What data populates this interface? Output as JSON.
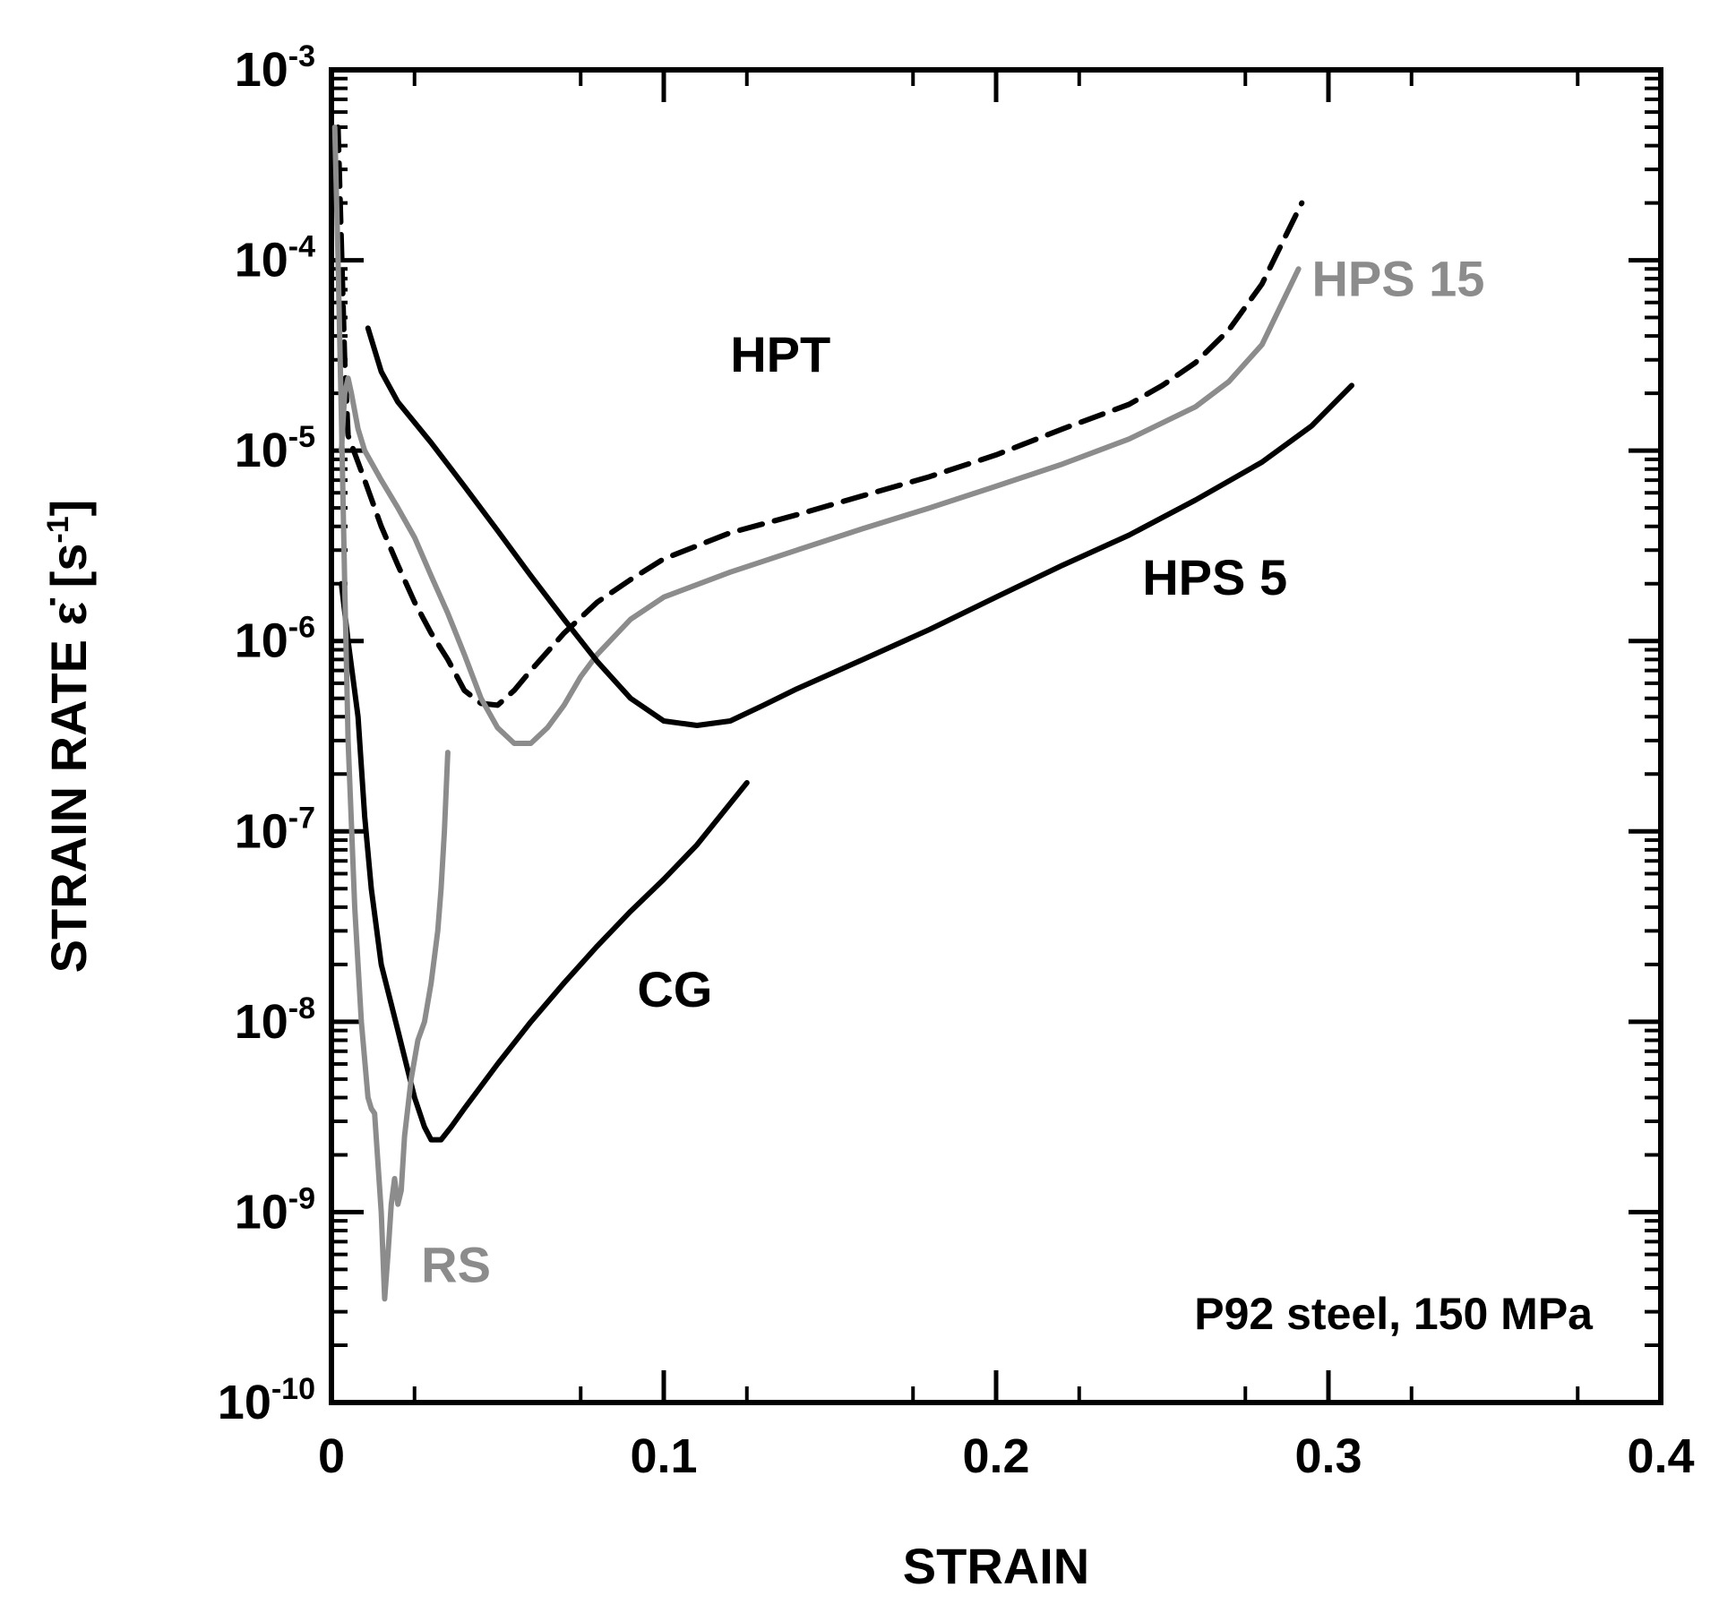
{
  "chart_data": {
    "type": "line",
    "title": "",
    "xlabel": "STRAIN",
    "ylabel": {
      "prefix": "STRAIN RATE ",
      "symbol": "ε̇",
      "unit_open": " [s",
      "unit_exp": "-1",
      "unit_close": "]"
    },
    "xlim": [
      0,
      0.4
    ],
    "ylim": [
      1e-10,
      0.001
    ],
    "yscale": "log",
    "grid": false,
    "x_ticks": [
      {
        "value": 0,
        "label": "0"
      },
      {
        "value": 0.1,
        "label": "0.1"
      },
      {
        "value": 0.2,
        "label": "0.2"
      },
      {
        "value": 0.3,
        "label": "0.3"
      },
      {
        "value": 0.4,
        "label": "0.4"
      }
    ],
    "y_ticks": [
      {
        "value": 1e-10,
        "base": "10",
        "exp": "-10"
      },
      {
        "value": 1e-09,
        "base": "10",
        "exp": "-9"
      },
      {
        "value": 1e-08,
        "base": "10",
        "exp": "-8"
      },
      {
        "value": 1e-07,
        "base": "10",
        "exp": "-7"
      },
      {
        "value": 1e-06,
        "base": "10",
        "exp": "-6"
      },
      {
        "value": 1e-05,
        "base": "10",
        "exp": "-5"
      },
      {
        "value": 0.0001,
        "base": "10",
        "exp": "-4"
      },
      {
        "value": 0.001,
        "base": "10",
        "exp": "-3"
      }
    ],
    "annotation": "P92 steel, 150 MPa",
    "series": [
      {
        "name": "HPT",
        "color": "#000000",
        "dash": true,
        "points": [
          [
            0.002,
            0.0005
          ],
          [
            0.004,
            3e-05
          ],
          [
            0.005,
            1.2e-05
          ],
          [
            0.01,
            7e-06
          ],
          [
            0.015,
            4e-06
          ],
          [
            0.02,
            2.5e-06
          ],
          [
            0.025,
            1.6e-06
          ],
          [
            0.03,
            1.1e-06
          ],
          [
            0.035,
            8e-07
          ],
          [
            0.04,
            5.5e-07
          ],
          [
            0.045,
            4.7e-07
          ],
          [
            0.05,
            4.6e-07
          ],
          [
            0.055,
            5.5e-07
          ],
          [
            0.06,
            7e-07
          ],
          [
            0.07,
            1.1e-06
          ],
          [
            0.08,
            1.6e-06
          ],
          [
            0.09,
            2.1e-06
          ],
          [
            0.1,
            2.7e-06
          ],
          [
            0.12,
            3.7e-06
          ],
          [
            0.14,
            4.6e-06
          ],
          [
            0.16,
            5.8e-06
          ],
          [
            0.18,
            7.3e-06
          ],
          [
            0.2,
            9.5e-06
          ],
          [
            0.22,
            1.3e-05
          ],
          [
            0.24,
            1.75e-05
          ],
          [
            0.25,
            2.2e-05
          ],
          [
            0.26,
            2.9e-05
          ],
          [
            0.27,
            4.3e-05
          ],
          [
            0.28,
            7.5e-05
          ],
          [
            0.292,
            0.0002
          ]
        ]
      },
      {
        "name": "HPS 15",
        "color": "#8c8c8c",
        "dash": false,
        "points": [
          [
            0.003,
            1e-05
          ],
          [
            0.004,
            2e-05
          ],
          [
            0.005,
            2.4e-05
          ],
          [
            0.006,
            2e-05
          ],
          [
            0.008,
            1.3e-05
          ],
          [
            0.01,
            1e-05
          ],
          [
            0.015,
            7e-06
          ],
          [
            0.02,
            5e-06
          ],
          [
            0.025,
            3.5e-06
          ],
          [
            0.03,
            2.2e-06
          ],
          [
            0.035,
            1.4e-06
          ],
          [
            0.04,
            8.5e-07
          ],
          [
            0.045,
            5e-07
          ],
          [
            0.05,
            3.5e-07
          ],
          [
            0.055,
            2.9e-07
          ],
          [
            0.06,
            2.9e-07
          ],
          [
            0.065,
            3.5e-07
          ],
          [
            0.07,
            4.6e-07
          ],
          [
            0.075,
            6.5e-07
          ],
          [
            0.08,
            8.5e-07
          ],
          [
            0.09,
            1.3e-06
          ],
          [
            0.1,
            1.7e-06
          ],
          [
            0.12,
            2.3e-06
          ],
          [
            0.14,
            3e-06
          ],
          [
            0.16,
            3.9e-06
          ],
          [
            0.18,
            5e-06
          ],
          [
            0.2,
            6.5e-06
          ],
          [
            0.22,
            8.5e-06
          ],
          [
            0.24,
            1.15e-05
          ],
          [
            0.26,
            1.7e-05
          ],
          [
            0.27,
            2.3e-05
          ],
          [
            0.28,
            3.6e-05
          ],
          [
            0.291,
            9e-05
          ]
        ]
      },
      {
        "name": "HPS 5",
        "color": "#000000",
        "dash": false,
        "points": [
          [
            0.011,
            4.4e-05
          ],
          [
            0.015,
            2.6e-05
          ],
          [
            0.02,
            1.8e-05
          ],
          [
            0.03,
            1.1e-05
          ],
          [
            0.04,
            6.5e-06
          ],
          [
            0.05,
            3.8e-06
          ],
          [
            0.06,
            2.2e-06
          ],
          [
            0.07,
            1.3e-06
          ],
          [
            0.08,
            7.8e-07
          ],
          [
            0.09,
            5e-07
          ],
          [
            0.1,
            3.8e-07
          ],
          [
            0.11,
            3.6e-07
          ],
          [
            0.12,
            3.8e-07
          ],
          [
            0.13,
            4.6e-07
          ],
          [
            0.14,
            5.6e-07
          ],
          [
            0.16,
            8e-07
          ],
          [
            0.18,
            1.15e-06
          ],
          [
            0.2,
            1.7e-06
          ],
          [
            0.22,
            2.5e-06
          ],
          [
            0.24,
            3.6e-06
          ],
          [
            0.26,
            5.5e-06
          ],
          [
            0.28,
            8.7e-06
          ],
          [
            0.295,
            1.35e-05
          ],
          [
            0.307,
            2.2e-05
          ]
        ]
      },
      {
        "name": "CG",
        "color": "#000000",
        "dash": false,
        "points": [
          [
            0.003,
            2e-06
          ],
          [
            0.005,
            1e-06
          ],
          [
            0.008,
            4e-07
          ],
          [
            0.01,
            1.2e-07
          ],
          [
            0.012,
            5e-08
          ],
          [
            0.015,
            2e-08
          ],
          [
            0.02,
            9e-09
          ],
          [
            0.025,
            4e-09
          ],
          [
            0.028,
            2.8e-09
          ],
          [
            0.03,
            2.4e-09
          ],
          [
            0.033,
            2.4e-09
          ],
          [
            0.036,
            2.8e-09
          ],
          [
            0.04,
            3.5e-09
          ],
          [
            0.05,
            6e-09
          ],
          [
            0.06,
            1e-08
          ],
          [
            0.07,
            1.6e-08
          ],
          [
            0.08,
            2.5e-08
          ],
          [
            0.09,
            3.8e-08
          ],
          [
            0.1,
            5.6e-08
          ],
          [
            0.11,
            8.5e-08
          ],
          [
            0.125,
            1.8e-07
          ]
        ]
      },
      {
        "name": "RS",
        "color": "#8c8c8c",
        "dash": false,
        "points": [
          [
            0.001,
            0.0005
          ],
          [
            0.002,
            0.0001
          ],
          [
            0.003,
            1.5e-05
          ],
          [
            0.004,
            2e-06
          ],
          [
            0.005,
            3e-07
          ],
          [
            0.007,
            4e-08
          ],
          [
            0.009,
            1e-08
          ],
          [
            0.011,
            4e-09
          ],
          [
            0.012,
            3.5e-09
          ],
          [
            0.013,
            3.3e-09
          ],
          [
            0.015,
            1e-09
          ],
          [
            0.016,
            3.5e-10
          ],
          [
            0.017,
            6e-10
          ],
          [
            0.018,
            1.1e-09
          ],
          [
            0.019,
            1.5e-09
          ],
          [
            0.02,
            1.1e-09
          ],
          [
            0.021,
            1.3e-09
          ],
          [
            0.022,
            2.5e-09
          ],
          [
            0.024,
            5e-09
          ],
          [
            0.026,
            8e-09
          ],
          [
            0.028,
            1e-08
          ],
          [
            0.03,
            1.6e-08
          ],
          [
            0.032,
            3e-08
          ],
          [
            0.033,
            5e-08
          ],
          [
            0.034,
            1e-07
          ],
          [
            0.035,
            2.6e-07
          ]
        ]
      }
    ],
    "series_labels": [
      {
        "name": "HPT",
        "text": "HPT",
        "color": "#000000",
        "at_x": 0.12,
        "at_y": 2.6e-05
      },
      {
        "name": "HPS 15",
        "text": "HPS 15",
        "color": "#8c8c8c",
        "at_x": 0.295,
        "at_y": 6.5e-05
      },
      {
        "name": "HPS 5",
        "text": "HPS 5",
        "color": "#000000",
        "at_x": 0.244,
        "at_y": 1.75e-06
      },
      {
        "name": "CG",
        "text": "CG",
        "color": "#000000",
        "at_x": 0.092,
        "at_y": 1.2e-08
      },
      {
        "name": "RS",
        "text": "RS",
        "color": "#8c8c8c",
        "at_x": 0.027,
        "at_y": 4.3e-10
      }
    ]
  }
}
